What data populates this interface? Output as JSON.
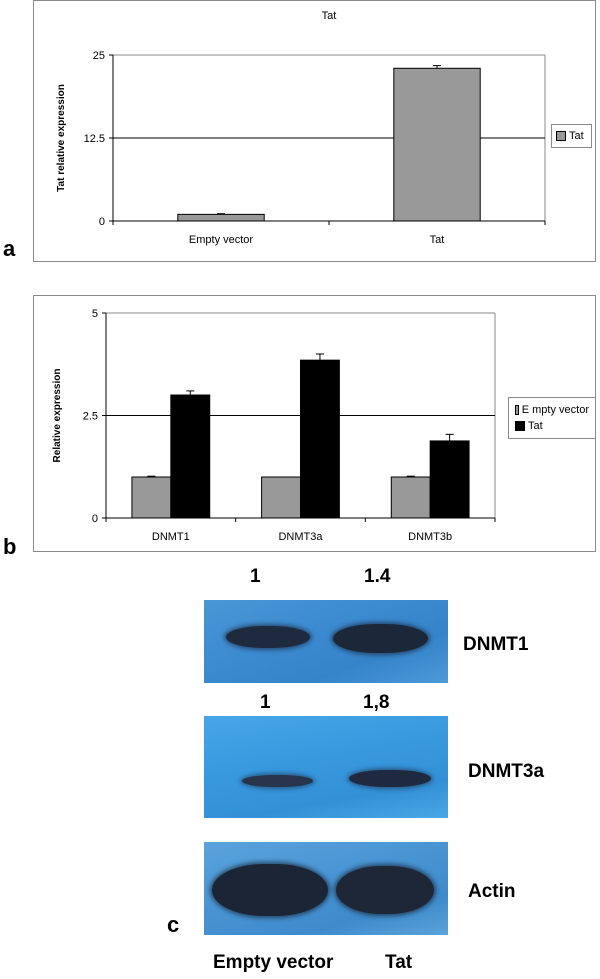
{
  "colors": {
    "grey_bar": "#999999",
    "black_bar": "#000000",
    "blot_blue": "#3f8fd2",
    "band_dark": "#1f2b3f"
  },
  "panel_a": {
    "letter": "a",
    "chart_data": {
      "type": "bar",
      "title": "Tat",
      "ylabel": "Tat relative expression",
      "xlabel": "",
      "categories": [
        "Empty vector",
        "Tat"
      ],
      "series": [
        {
          "name": "Tat",
          "values": [
            1,
            23
          ],
          "errors": [
            0.1,
            0.4
          ],
          "color": "#999999"
        }
      ],
      "ylim": [
        0,
        25
      ],
      "yticks": [
        "0",
        "12.5",
        "25"
      ],
      "gridlines": [
        12.5
      ],
      "grid": true,
      "legend": "right"
    }
  },
  "panel_b": {
    "letter": "b",
    "chart_data": {
      "type": "bar",
      "title": "",
      "ylabel": "Relative expression",
      "xlabel": "",
      "categories": [
        "DNMT1",
        "DNMT3a",
        "DNMT3b"
      ],
      "series": [
        {
          "name": "E mpty vector",
          "values": [
            1,
            1,
            1
          ],
          "errors": [
            0.02,
            0,
            0.02
          ],
          "color": "#999999"
        },
        {
          "name": "Tat",
          "values": [
            3.0,
            3.85,
            1.88
          ],
          "errors": [
            0.1,
            0.15,
            0.16
          ],
          "color": "#000000"
        }
      ],
      "ylim": [
        0,
        5
      ],
      "yticks": [
        "0",
        "2.5",
        "5"
      ],
      "gridlines": [
        2.5
      ],
      "grid": true,
      "legend": "right"
    }
  },
  "panel_c": {
    "letter": "c",
    "blots": [
      {
        "label": "DNMT1",
        "quant": [
          "1",
          "1.4"
        ]
      },
      {
        "label": "DNMT3a",
        "quant": [
          "1",
          "1,8"
        ]
      },
      {
        "label": "Actin",
        "quant": []
      }
    ],
    "lane_labels": [
      "Empty vector",
      "Tat"
    ]
  }
}
